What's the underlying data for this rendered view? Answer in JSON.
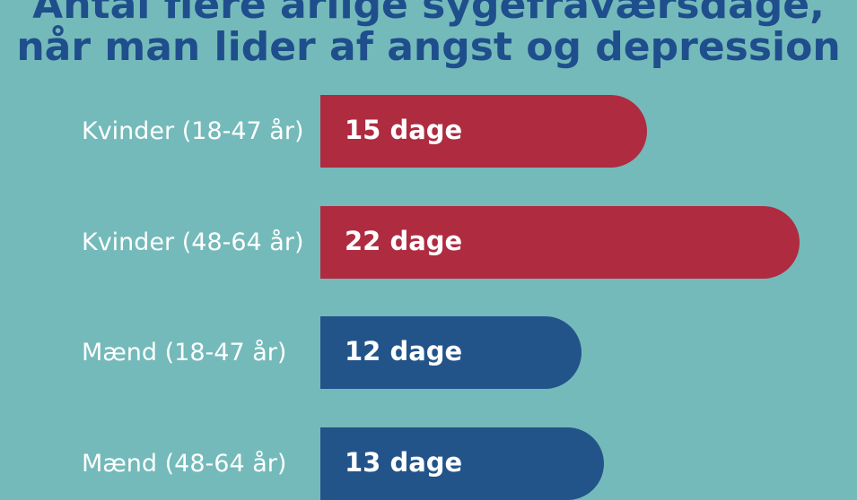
{
  "title_lines": [
    "Antal flere årlige sygefraværsdage,",
    "når man lider af angst og depression"
  ],
  "colors": {
    "background": "#74BABA",
    "women": "#AF2B40",
    "men": "#22548A",
    "title": "#1F4E8C"
  },
  "chart_data": {
    "type": "bar",
    "orientation": "horizontal",
    "title": "Antal flere årlige sygefraværsdage, når man lider af angst og depression",
    "categories": [
      "Kvinder (18-47 år)",
      "Kvinder (48-64 år)",
      "Mænd (18-47 år)",
      "Mænd (48-64 år)"
    ],
    "values": [
      15,
      22,
      12,
      13
    ],
    "value_labels": [
      "15 dage",
      "22 dage",
      "12 dage",
      "13 dage"
    ],
    "bar_colors": [
      "#AF2B40",
      "#AF2B40",
      "#22548A",
      "#22548A"
    ],
    "xlabel": "",
    "ylabel": "",
    "xlim": [
      0,
      22
    ],
    "grid": false
  }
}
